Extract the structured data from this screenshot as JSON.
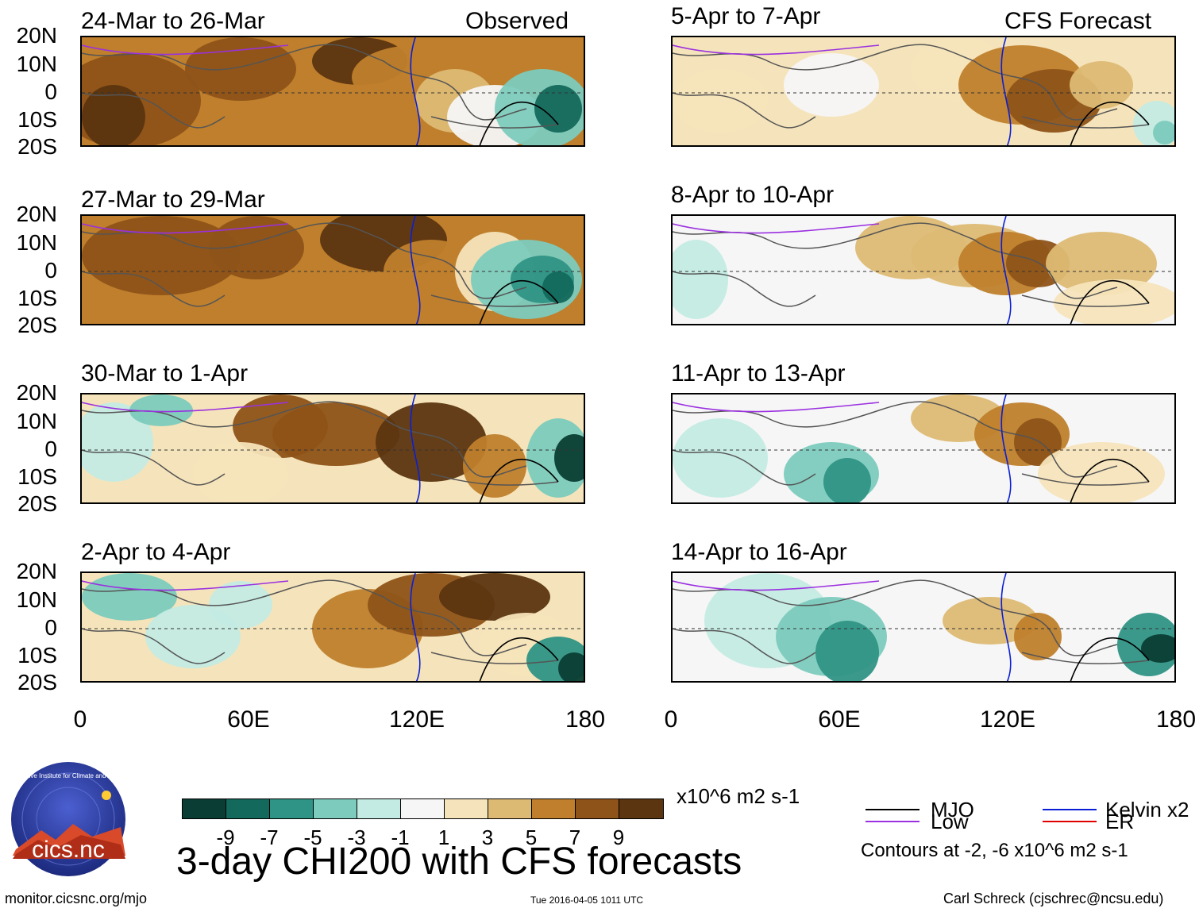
{
  "title": "3-day CHI200 with CFS forecasts",
  "observed_label": "Observed",
  "forecast_label": "CFS Forecast",
  "panels_left": [
    {
      "period": "24-Mar to 26-Mar"
    },
    {
      "period": "27-Mar to 29-Mar"
    },
    {
      "period": "30-Mar to 1-Apr"
    },
    {
      "period": "2-Apr to 4-Apr"
    }
  ],
  "panels_right": [
    {
      "period": "5-Apr to 7-Apr"
    },
    {
      "period": "8-Apr to 10-Apr"
    },
    {
      "period": "11-Apr to 13-Apr"
    },
    {
      "period": "14-Apr to 16-Apr"
    }
  ],
  "y_axis": [
    "20N",
    "10N",
    "0",
    "10S",
    "20S"
  ],
  "x_axis": [
    "0",
    "60E",
    "120E",
    "180"
  ],
  "colorbar": {
    "labels": [
      "-9",
      "-7",
      "-5",
      "-3",
      "-1",
      "1",
      "3",
      "5",
      "7",
      "9"
    ],
    "colors": [
      "#0a3d33",
      "#13695c",
      "#2f9485",
      "#7ccbbd",
      "#c4ebe3",
      "#f6f6f6",
      "#f5e4bb",
      "#ddba74",
      "#bf7f2c",
      "#8e5318",
      "#5b3510"
    ],
    "units": "x10^6 m2 s-1"
  },
  "legend": {
    "items": [
      {
        "name": "MJO",
        "color": "#000000"
      },
      {
        "name": "Kelvin x2",
        "color": "#0a1fd6"
      },
      {
        "name": "Low",
        "color": "#9b30e0"
      },
      {
        "name": "ER",
        "color": "#e00000"
      }
    ],
    "note": "Contours at -2, -6 x10^6 m2 s-1"
  },
  "logo_text": "cics.nc",
  "logo_ring_text": "Cooperative Institute for Climate and Satellites",
  "footer": {
    "left": "monitor.cicsnc.org/mjo",
    "center": "Tue 2016-04-05 1011 UTC",
    "right": "Carl Schreck (cjschrec@ncsu.edu)"
  }
}
